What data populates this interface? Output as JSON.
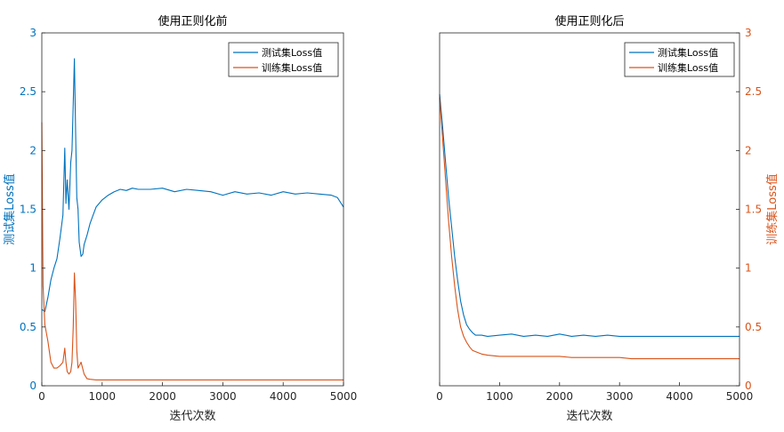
{
  "chart_data": [
    {
      "type": "line",
      "title": "使用正则化前",
      "xlabel": "迭代次数",
      "ylabel": "测试集Loss值",
      "xlim": [
        0,
        5000
      ],
      "ylim": [
        0,
        3
      ],
      "xticks": [
        "0",
        "1000",
        "2000",
        "3000",
        "4000",
        "5000"
      ],
      "yticks": [
        "0",
        "0.5",
        "1",
        "1.5",
        "2",
        "2.5",
        "3"
      ],
      "legend_position": "top-right",
      "grid": false,
      "series": [
        {
          "name": "测试集Loss值",
          "color": "#0072BD",
          "x": [
            0,
            50,
            100,
            150,
            200,
            250,
            300,
            350,
            380,
            400,
            420,
            450,
            480,
            500,
            520,
            540,
            560,
            580,
            600,
            620,
            650,
            680,
            700,
            750,
            800,
            850,
            900,
            1000,
            1100,
            1200,
            1300,
            1400,
            1500,
            1600,
            1800,
            2000,
            2200,
            2400,
            2600,
            2800,
            3000,
            3200,
            3400,
            3600,
            3800,
            4000,
            4200,
            4400,
            4600,
            4800,
            4900,
            5000
          ],
          "y": [
            0.65,
            0.63,
            0.75,
            0.9,
            1.0,
            1.08,
            1.25,
            1.45,
            2.02,
            1.55,
            1.75,
            1.5,
            1.9,
            2.0,
            2.4,
            2.78,
            2.15,
            1.6,
            1.5,
            1.22,
            1.1,
            1.12,
            1.2,
            1.28,
            1.38,
            1.45,
            1.52,
            1.58,
            1.62,
            1.65,
            1.67,
            1.66,
            1.68,
            1.67,
            1.67,
            1.68,
            1.65,
            1.67,
            1.66,
            1.65,
            1.62,
            1.65,
            1.63,
            1.64,
            1.62,
            1.65,
            1.63,
            1.64,
            1.63,
            1.62,
            1.6,
            1.52
          ]
        },
        {
          "name": "训练集Loss值",
          "color": "#D95319",
          "x": [
            0,
            20,
            50,
            100,
            150,
            200,
            250,
            300,
            350,
            380,
            400,
            420,
            450,
            480,
            500,
            520,
            540,
            560,
            580,
            600,
            650,
            700,
            750,
            800,
            900,
            1000,
            1200,
            1500,
            2000,
            2500,
            3000,
            3500,
            4000,
            4500,
            5000
          ],
          "y": [
            2.24,
            0.85,
            0.52,
            0.38,
            0.2,
            0.15,
            0.15,
            0.17,
            0.2,
            0.32,
            0.2,
            0.12,
            0.1,
            0.12,
            0.2,
            0.5,
            0.96,
            0.72,
            0.3,
            0.15,
            0.2,
            0.1,
            0.06,
            0.055,
            0.05,
            0.05,
            0.05,
            0.05,
            0.05,
            0.05,
            0.05,
            0.05,
            0.05,
            0.05,
            0.05
          ]
        }
      ]
    },
    {
      "type": "line",
      "title": "使用正则化后",
      "xlabel": "迭代次数",
      "ylabel": "训练集Loss值",
      "xlim": [
        0,
        5000
      ],
      "ylim": [
        0,
        3
      ],
      "xticks": [
        "0",
        "1000",
        "2000",
        "3000",
        "4000",
        "5000"
      ],
      "yticks": [
        "0",
        "0.5",
        "1",
        "1.5",
        "2",
        "2.5",
        "3"
      ],
      "yaxis_side": "right",
      "legend_position": "top-right",
      "grid": false,
      "series": [
        {
          "name": "测试集Loss值",
          "color": "#0072BD",
          "x": [
            0,
            50,
            100,
            150,
            200,
            250,
            300,
            350,
            400,
            450,
            500,
            550,
            600,
            700,
            800,
            1000,
            1200,
            1400,
            1600,
            1800,
            2000,
            2200,
            2400,
            2600,
            2800,
            3000,
            3200,
            3400,
            3600,
            3800,
            4000,
            4200,
            4400,
            4600,
            4800,
            5000
          ],
          "y": [
            2.48,
            2.2,
            1.9,
            1.6,
            1.35,
            1.1,
            0.9,
            0.72,
            0.6,
            0.52,
            0.48,
            0.45,
            0.43,
            0.43,
            0.42,
            0.43,
            0.44,
            0.42,
            0.43,
            0.42,
            0.44,
            0.42,
            0.43,
            0.42,
            0.43,
            0.42,
            0.42,
            0.42,
            0.42,
            0.42,
            0.42,
            0.42,
            0.42,
            0.42,
            0.42,
            0.42
          ]
        },
        {
          "name": "训练集Loss值",
          "color": "#D95319",
          "x": [
            0,
            50,
            100,
            150,
            200,
            250,
            300,
            350,
            400,
            450,
            500,
            550,
            600,
            700,
            800,
            1000,
            1200,
            1400,
            1600,
            1800,
            2000,
            2200,
            2400,
            2600,
            2800,
            3000,
            3200,
            3400,
            3600,
            3800,
            4000,
            4200,
            4400,
            4600,
            4800,
            5000
          ],
          "y": [
            2.45,
            2.1,
            1.75,
            1.4,
            1.1,
            0.85,
            0.65,
            0.5,
            0.42,
            0.37,
            0.33,
            0.3,
            0.29,
            0.27,
            0.26,
            0.25,
            0.25,
            0.25,
            0.25,
            0.25,
            0.25,
            0.24,
            0.24,
            0.24,
            0.24,
            0.24,
            0.23,
            0.23,
            0.23,
            0.23,
            0.23,
            0.23,
            0.23,
            0.23,
            0.23,
            0.23
          ]
        }
      ]
    }
  ]
}
